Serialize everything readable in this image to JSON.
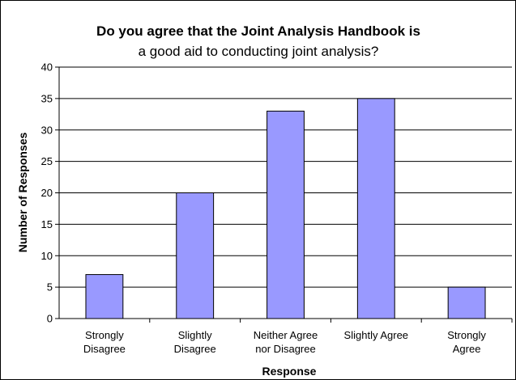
{
  "chart_data": {
    "type": "bar",
    "title_line1": "Do you agree that the Joint Analysis Handbook is",
    "title_line2": "a good aid to conducting joint analysis?",
    "xlabel": "Response",
    "ylabel": "Number of Responses",
    "categories": [
      [
        "Strongly",
        "Disagree"
      ],
      [
        "Slightly",
        "Disagree"
      ],
      [
        "Neither Agree",
        "nor Disagree"
      ],
      [
        "Slightly Agree"
      ],
      [
        "Strongly",
        "Agree"
      ]
    ],
    "values": [
      7,
      20,
      33,
      35,
      5
    ],
    "ylim": [
      0,
      40
    ],
    "yticks": [
      0,
      5,
      10,
      15,
      20,
      25,
      30,
      35,
      40
    ],
    "grid": true,
    "legend": "none",
    "colors": {
      "bar_fill": "#9999ff",
      "bar_stroke": "#000000",
      "grid": "#000000",
      "background": "#ffffff"
    }
  }
}
